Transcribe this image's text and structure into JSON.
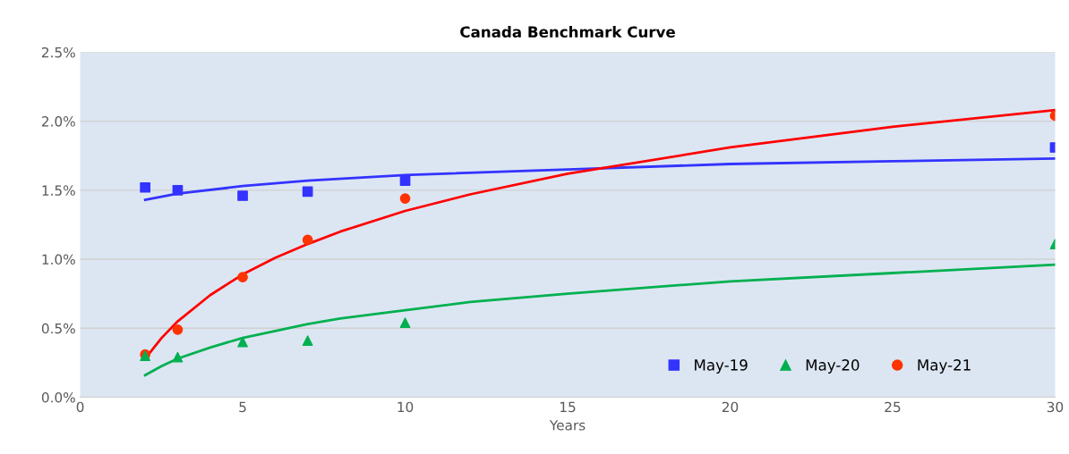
{
  "chart_data": {
    "type": "scatter",
    "title": "Canada Benchmark Curve",
    "xlabel": "Years",
    "x": [
      2,
      3,
      5,
      7,
      10,
      30
    ],
    "series": [
      {
        "name": "May-19",
        "color": "#3333ff",
        "marker": "square",
        "values": [
          1.52,
          1.5,
          1.46,
          1.49,
          1.57,
          1.81
        ]
      },
      {
        "name": "May-20",
        "color": "#00b050",
        "marker": "triangle",
        "values": [
          0.3,
          0.29,
          0.4,
          0.41,
          0.54,
          1.11
        ]
      },
      {
        "name": "May-21",
        "color": "#ff3300",
        "marker": "circle",
        "values": [
          0.31,
          0.49,
          0.87,
          1.14,
          1.44,
          2.04
        ]
      },
      {
        "type": "line",
        "color": "#3333ff",
        "marker": "none",
        "x": [
          2,
          3,
          5,
          7,
          10,
          15,
          20,
          25,
          30
        ],
        "values": [
          1.43,
          1.475,
          1.53,
          1.57,
          1.61,
          1.65,
          1.69,
          1.71,
          1.73
        ]
      },
      {
        "type": "line",
        "color": "#00b050",
        "marker": "none",
        "x": [
          2,
          2.5,
          3,
          4,
          5,
          6,
          7,
          8,
          10,
          12,
          15,
          20,
          25,
          30
        ],
        "values": [
          0.16,
          0.225,
          0.28,
          0.36,
          0.43,
          0.48,
          0.53,
          0.57,
          0.63,
          0.69,
          0.75,
          0.84,
          0.9,
          0.96
        ]
      },
      {
        "type": "line",
        "color": "#ff0000",
        "marker": "none",
        "x": [
          2,
          2.5,
          3,
          4,
          5,
          6,
          7,
          8,
          10,
          12,
          15,
          20,
          25,
          30
        ],
        "values": [
          0.28,
          0.428,
          0.55,
          0.74,
          0.89,
          1.01,
          1.11,
          1.2,
          1.35,
          1.47,
          1.62,
          1.81,
          1.96,
          2.08
        ]
      }
    ],
    "xlim": [
      0,
      30
    ],
    "xticks": [
      0,
      5,
      10,
      15,
      20,
      25,
      30
    ],
    "ylim": [
      0,
      2.5
    ],
    "yticks": [
      {
        "value": 0,
        "label": "0.0%"
      },
      {
        "value": 0.5,
        "label": "0.5%"
      },
      {
        "value": 1,
        "label": "1.0%"
      },
      {
        "value": 1.5,
        "label": "1.5%"
      },
      {
        "value": 2,
        "label": "2.0%"
      },
      {
        "value": 2.5,
        "label": "2.5%"
      }
    ],
    "grid": "y",
    "legend": "bottom right",
    "line_style": "solid"
  }
}
